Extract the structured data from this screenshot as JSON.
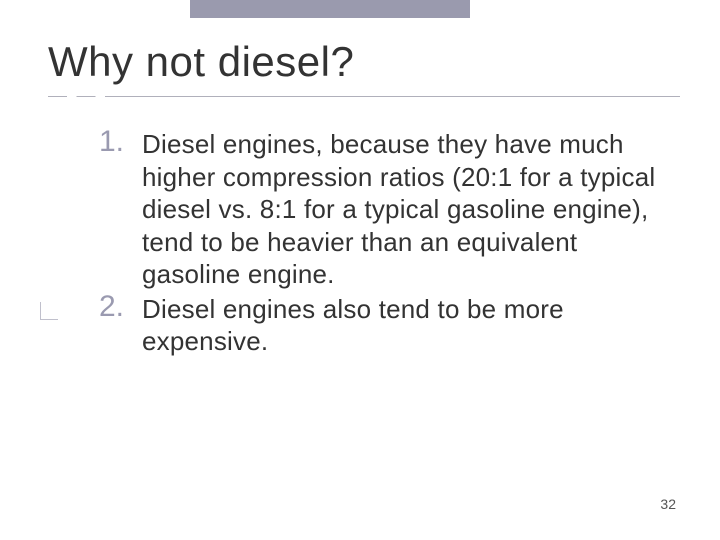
{
  "slide": {
    "title": "Why not diesel?",
    "items": [
      {
        "number": "1.",
        "text": "Diesel engines, because they have much higher compression ratios (20:1 for a typical diesel vs. 8:1 for a typical gasoline engine), tend to be heavier than an equivalent gasoline engine."
      },
      {
        "number": "2.",
        "text": "Diesel engines also tend to be more expensive."
      }
    ],
    "page_number": "32"
  },
  "style": {
    "title_color": "#333333",
    "title_fontsize": 42,
    "number_color": "#9a9ab0",
    "number_fontsize": 30,
    "body_color": "#333333",
    "body_fontsize": 26,
    "topbar_color": "#9a9aae",
    "background": "#ffffff"
  }
}
